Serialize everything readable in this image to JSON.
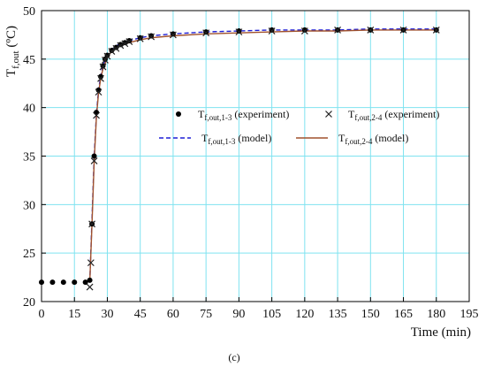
{
  "panel_label": "(c)",
  "chart_data": {
    "type": "line",
    "xlabel": "Time (min)",
    "ylabel": {
      "base": "T",
      "sub": "f,out",
      "units": " (ºC)"
    },
    "xlim": [
      0,
      195
    ],
    "ylim": [
      20,
      50
    ],
    "xticks": [
      0,
      15,
      30,
      45,
      60,
      75,
      90,
      105,
      120,
      135,
      150,
      165,
      180,
      195
    ],
    "yticks": [
      20,
      25,
      30,
      35,
      40,
      45,
      50
    ],
    "grid": true,
    "grid_color": "#7fe3f0",
    "legend_placement": "center",
    "series": [
      {
        "name": {
          "base": "T",
          "sub": "f,out,1-3",
          "suffix": " (experiment)"
        },
        "style": "marker",
        "marker": "circle",
        "color": "#000000",
        "x": [
          0,
          5,
          10,
          15,
          20,
          22,
          23,
          24,
          25,
          26,
          27,
          28,
          29,
          30,
          32,
          34,
          36,
          38,
          40,
          45,
          50,
          60,
          75,
          90,
          105,
          120,
          135,
          150,
          165,
          180
        ],
        "y": [
          22,
          22,
          22,
          22,
          22,
          22.2,
          28,
          35,
          39.5,
          41.8,
          43.2,
          44.3,
          45.0,
          45.4,
          45.9,
          46.2,
          46.5,
          46.7,
          46.9,
          47.2,
          47.4,
          47.6,
          47.8,
          47.9,
          48.0,
          48.0,
          48.0,
          48.0,
          48.0,
          48.0
        ]
      },
      {
        "name": {
          "base": "T",
          "sub": "f,out,2-4",
          "suffix": " (experiment)"
        },
        "style": "marker",
        "marker": "x",
        "color": "#222222",
        "x": [
          22,
          22.5,
          23,
          24,
          25,
          26,
          27,
          28,
          29,
          30,
          32,
          34,
          36,
          38,
          40,
          45,
          50,
          60,
          75,
          90,
          105,
          120,
          135,
          150,
          165,
          180
        ],
        "y": [
          21.5,
          24,
          28,
          34.5,
          39.2,
          41.6,
          43.0,
          44.2,
          44.9,
          45.3,
          45.8,
          46.1,
          46.4,
          46.6,
          46.8,
          47.1,
          47.3,
          47.5,
          47.7,
          47.8,
          47.9,
          47.9,
          48.0,
          48.0,
          48.0,
          48.0
        ]
      },
      {
        "name": {
          "base": "T",
          "sub": "f,out,1-3",
          "suffix": " (model)"
        },
        "style": "dashed",
        "color": "#1f1fd6",
        "x": [
          22,
          23,
          24,
          25,
          26,
          27,
          28,
          30,
          32,
          35,
          40,
          45,
          50,
          60,
          75,
          90,
          105,
          120,
          135,
          150,
          165,
          180
        ],
        "y": [
          22,
          28.5,
          35,
          39.3,
          41.8,
          43.3,
          44.3,
          45.4,
          46.0,
          46.5,
          46.9,
          47.2,
          47.4,
          47.6,
          47.8,
          47.9,
          48.0,
          48.0,
          48.0,
          48.1,
          48.1,
          48.1
        ]
      },
      {
        "name": {
          "base": "T",
          "sub": "f,out,2-4",
          "suffix": " (model)"
        },
        "style": "solid",
        "color": "#a0522d",
        "x": [
          22,
          23,
          24,
          25,
          26,
          27,
          28,
          30,
          32,
          35,
          40,
          45,
          50,
          60,
          75,
          90,
          105,
          120,
          135,
          150,
          165,
          180
        ],
        "y": [
          22,
          28,
          34.5,
          39.0,
          41.5,
          43.0,
          44.0,
          45.2,
          45.8,
          46.3,
          46.7,
          47.0,
          47.2,
          47.4,
          47.6,
          47.7,
          47.8,
          47.9,
          47.9,
          48.0,
          48.0,
          48.0
        ]
      }
    ]
  }
}
